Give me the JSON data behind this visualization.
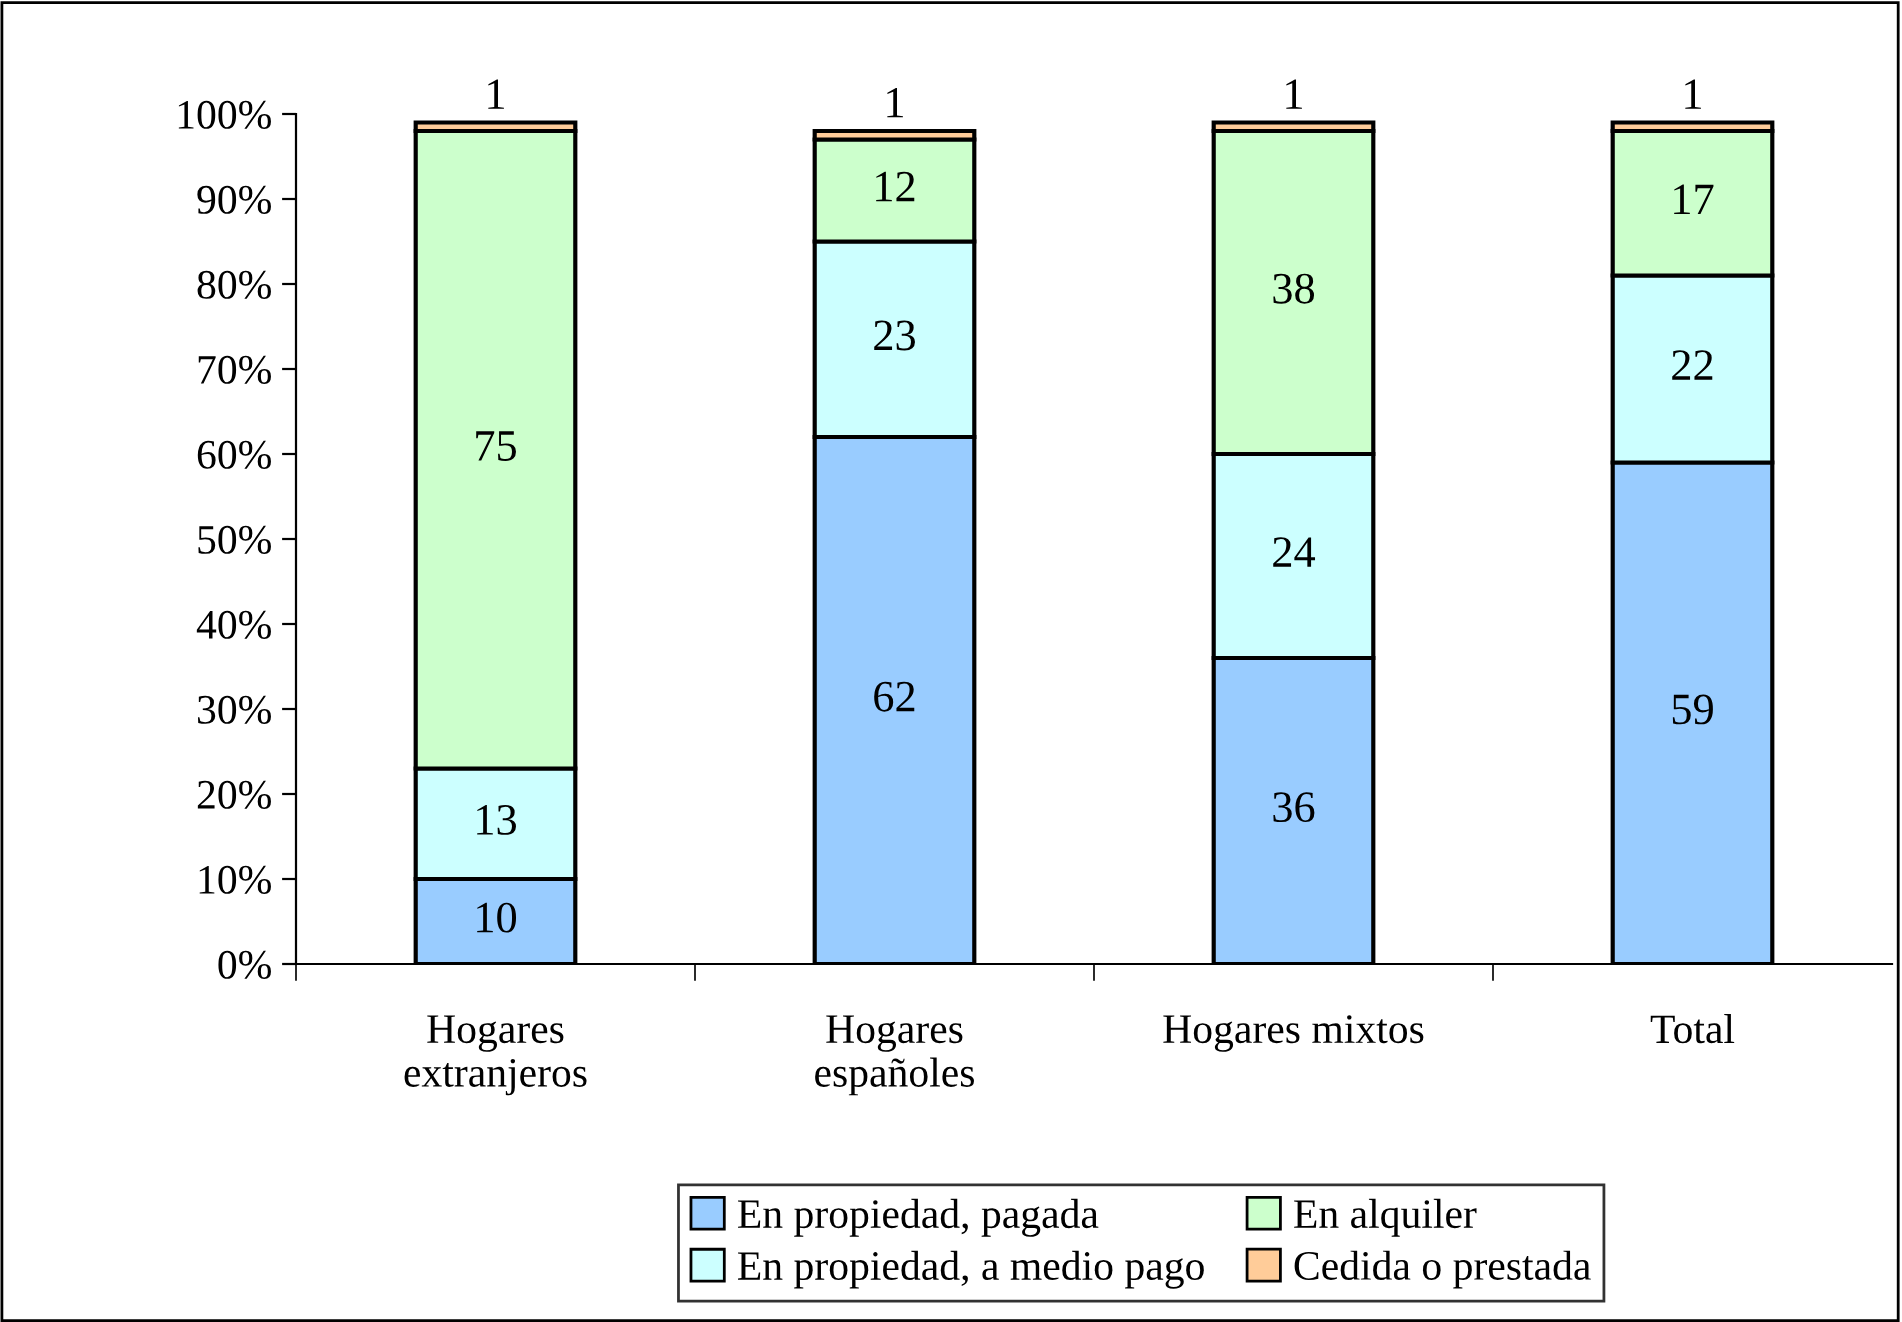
{
  "chart_data": {
    "type": "bar",
    "stacked": true,
    "categories": [
      "Hogares\nextranjeros",
      "Hogares\nespañoles",
      "Hogares mixtos",
      "Total"
    ],
    "series": [
      {
        "name": "En propiedad, pagada",
        "color": "#99ccff",
        "values": [
          10,
          62,
          36,
          59
        ]
      },
      {
        "name": "En propiedad, a medio pago",
        "color": "#ccffff",
        "values": [
          13,
          23,
          24,
          22
        ]
      },
      {
        "name": "En alquiler",
        "color": "#ccffcc",
        "values": [
          75,
          12,
          38,
          17
        ]
      },
      {
        "name": "Cedida o prestada",
        "color": "#ffcc99",
        "values": [
          1,
          1,
          1,
          1
        ]
      }
    ],
    "ylim": [
      0,
      100
    ],
    "yticks": [
      {
        "value": 0,
        "label": "0%"
      },
      {
        "value": 10,
        "label": "10%"
      },
      {
        "value": 20,
        "label": "20%"
      },
      {
        "value": 30,
        "label": "30%"
      },
      {
        "value": 40,
        "label": "40%"
      },
      {
        "value": 50,
        "label": "50%"
      },
      {
        "value": 60,
        "label": "60%"
      },
      {
        "value": 70,
        "label": "70%"
      },
      {
        "value": 80,
        "label": "80%"
      },
      {
        "value": 90,
        "label": "90%"
      },
      {
        "value": 100,
        "label": "100%"
      }
    ],
    "data_labels": true,
    "grid": false,
    "legend": "bottom"
  }
}
